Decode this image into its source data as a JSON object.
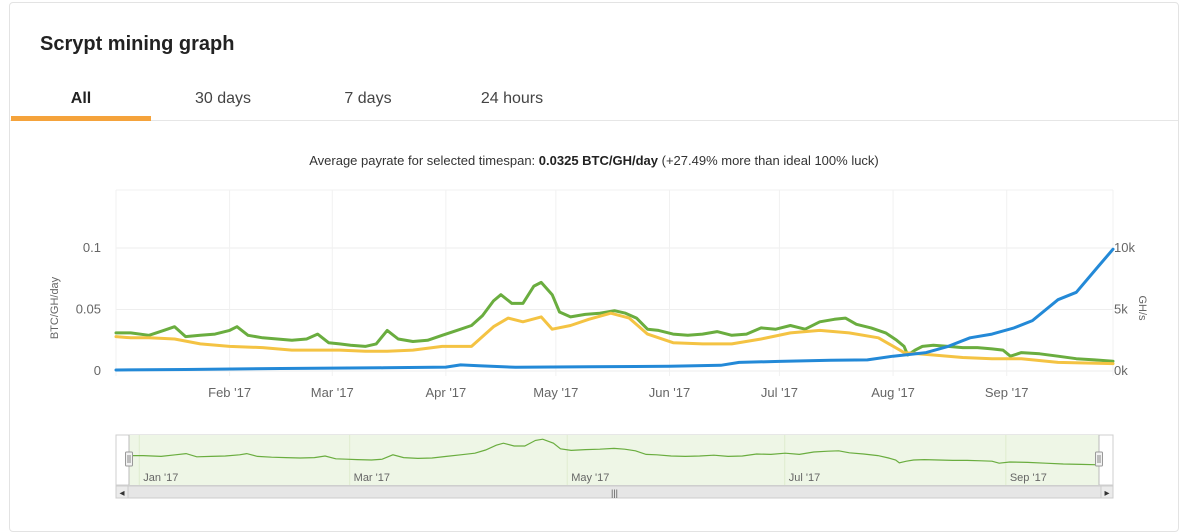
{
  "title": "Scrypt mining graph",
  "tabs": [
    {
      "label": "All",
      "active": true
    },
    {
      "label": "30 days",
      "active": false
    },
    {
      "label": "7 days",
      "active": false
    },
    {
      "label": "24 hours",
      "active": false
    }
  ],
  "subtitle": {
    "prefix": "Average payrate for selected timespan: ",
    "value": "0.0325 BTC/GH/day",
    "suffix": " (+27.49% more than ideal 100% luck)"
  },
  "colors": {
    "accent": "#f5a33b",
    "green": "#6aad3f",
    "yellow": "#f4c343",
    "blue": "#2389d7",
    "navigator_fill": "#eef6e6"
  },
  "chart_data": {
    "type": "line",
    "x_range": [
      "2017-01-01",
      "2017-09-30"
    ],
    "y_left": {
      "label": "BTC/GH/day",
      "ticks": [
        "0",
        "0.05",
        "0.1"
      ],
      "range": [
        0,
        0.1
      ]
    },
    "y_right": {
      "label": "GH/s",
      "ticks": [
        "0k",
        "5k",
        "10k"
      ],
      "range": [
        0,
        10000
      ]
    },
    "x_ticks": [
      {
        "label": "Feb '17",
        "date": "2017-02-01"
      },
      {
        "label": "Mar '17",
        "date": "2017-03-01"
      },
      {
        "label": "Apr '17",
        "date": "2017-04-01"
      },
      {
        "label": "May '17",
        "date": "2017-05-01"
      },
      {
        "label": "Jun '17",
        "date": "2017-06-01"
      },
      {
        "label": "Jul '17",
        "date": "2017-07-01"
      },
      {
        "label": "Aug '17",
        "date": "2017-08-01"
      },
      {
        "label": "Sep '17",
        "date": "2017-09-01"
      }
    ],
    "navigator_ticks": [
      {
        "label": "Jan '17",
        "date": "2017-01-05"
      },
      {
        "label": "Mar '17",
        "date": "2017-03-05"
      },
      {
        "label": "May '17",
        "date": "2017-05-05"
      },
      {
        "label": "Jul '17",
        "date": "2017-07-05"
      },
      {
        "label": "Sep '17",
        "date": "2017-09-05"
      }
    ],
    "series": [
      {
        "axis": "left",
        "color": "#6aad3f",
        "points": [
          [
            "2017-01-01",
            0.031
          ],
          [
            "2017-01-05",
            0.031
          ],
          [
            "2017-01-10",
            0.029
          ],
          [
            "2017-01-14",
            0.033
          ],
          [
            "2017-01-17",
            0.036
          ],
          [
            "2017-01-20",
            0.028
          ],
          [
            "2017-01-24",
            0.029
          ],
          [
            "2017-01-28",
            0.03
          ],
          [
            "2017-02-01",
            0.033
          ],
          [
            "2017-02-03",
            0.036
          ],
          [
            "2017-02-06",
            0.029
          ],
          [
            "2017-02-10",
            0.027
          ],
          [
            "2017-02-14",
            0.026
          ],
          [
            "2017-02-18",
            0.025
          ],
          [
            "2017-02-22",
            0.026
          ],
          [
            "2017-02-25",
            0.03
          ],
          [
            "2017-02-28",
            0.023
          ],
          [
            "2017-03-03",
            0.022
          ],
          [
            "2017-03-06",
            0.021
          ],
          [
            "2017-03-10",
            0.02
          ],
          [
            "2017-03-13",
            0.022
          ],
          [
            "2017-03-16",
            0.033
          ],
          [
            "2017-03-19",
            0.026
          ],
          [
            "2017-03-23",
            0.024
          ],
          [
            "2017-03-27",
            0.025
          ],
          [
            "2017-03-31",
            0.029
          ],
          [
            "2017-04-04",
            0.033
          ],
          [
            "2017-04-08",
            0.037
          ],
          [
            "2017-04-11",
            0.045
          ],
          [
            "2017-04-14",
            0.057
          ],
          [
            "2017-04-16",
            0.062
          ],
          [
            "2017-04-19",
            0.055
          ],
          [
            "2017-04-22",
            0.055
          ],
          [
            "2017-04-25",
            0.069
          ],
          [
            "2017-04-27",
            0.072
          ],
          [
            "2017-04-30",
            0.062
          ],
          [
            "2017-05-02",
            0.048
          ],
          [
            "2017-05-05",
            0.044
          ],
          [
            "2017-05-09",
            0.046
          ],
          [
            "2017-05-13",
            0.047
          ],
          [
            "2017-05-17",
            0.049
          ],
          [
            "2017-05-20",
            0.047
          ],
          [
            "2017-05-23",
            0.043
          ],
          [
            "2017-05-26",
            0.034
          ],
          [
            "2017-05-29",
            0.033
          ],
          [
            "2017-06-02",
            0.03
          ],
          [
            "2017-06-06",
            0.029
          ],
          [
            "2017-06-10",
            0.03
          ],
          [
            "2017-06-14",
            0.032
          ],
          [
            "2017-06-18",
            0.029
          ],
          [
            "2017-06-22",
            0.03
          ],
          [
            "2017-06-26",
            0.035
          ],
          [
            "2017-06-30",
            0.034
          ],
          [
            "2017-07-04",
            0.037
          ],
          [
            "2017-07-08",
            0.034
          ],
          [
            "2017-07-12",
            0.04
          ],
          [
            "2017-07-16",
            0.042
          ],
          [
            "2017-07-19",
            0.043
          ],
          [
            "2017-07-22",
            0.038
          ],
          [
            "2017-07-26",
            0.035
          ],
          [
            "2017-07-30",
            0.031
          ],
          [
            "2017-08-02",
            0.025
          ],
          [
            "2017-08-04",
            0.02
          ],
          [
            "2017-08-05",
            0.013
          ],
          [
            "2017-08-07",
            0.017
          ],
          [
            "2017-08-09",
            0.02
          ],
          [
            "2017-08-12",
            0.021
          ],
          [
            "2017-08-16",
            0.02
          ],
          [
            "2017-08-20",
            0.019
          ],
          [
            "2017-08-24",
            0.019
          ],
          [
            "2017-08-28",
            0.018
          ],
          [
            "2017-08-31",
            0.017
          ],
          [
            "2017-09-02",
            0.012
          ],
          [
            "2017-09-05",
            0.015
          ],
          [
            "2017-09-10",
            0.014
          ],
          [
            "2017-09-15",
            0.012
          ],
          [
            "2017-09-20",
            0.01
          ],
          [
            "2017-09-25",
            0.009
          ],
          [
            "2017-09-30",
            0.008
          ]
        ]
      },
      {
        "axis": "left",
        "color": "#f4c343",
        "points": [
          [
            "2017-01-01",
            0.028
          ],
          [
            "2017-01-05",
            0.027
          ],
          [
            "2017-01-10",
            0.027
          ],
          [
            "2017-01-17",
            0.026
          ],
          [
            "2017-01-24",
            0.022
          ],
          [
            "2017-02-01",
            0.02
          ],
          [
            "2017-02-10",
            0.019
          ],
          [
            "2017-02-18",
            0.017
          ],
          [
            "2017-02-25",
            0.017
          ],
          [
            "2017-03-03",
            0.017
          ],
          [
            "2017-03-10",
            0.016
          ],
          [
            "2017-03-16",
            0.016
          ],
          [
            "2017-03-23",
            0.017
          ],
          [
            "2017-03-31",
            0.02
          ],
          [
            "2017-04-08",
            0.02
          ],
          [
            "2017-04-14",
            0.036
          ],
          [
            "2017-04-18",
            0.043
          ],
          [
            "2017-04-22",
            0.04
          ],
          [
            "2017-04-27",
            0.044
          ],
          [
            "2017-04-30",
            0.034
          ],
          [
            "2017-05-05",
            0.037
          ],
          [
            "2017-05-10",
            0.042
          ],
          [
            "2017-05-16",
            0.047
          ],
          [
            "2017-05-21",
            0.043
          ],
          [
            "2017-05-26",
            0.03
          ],
          [
            "2017-06-02",
            0.023
          ],
          [
            "2017-06-10",
            0.022
          ],
          [
            "2017-06-18",
            0.022
          ],
          [
            "2017-06-26",
            0.026
          ],
          [
            "2017-07-04",
            0.031
          ],
          [
            "2017-07-12",
            0.033
          ],
          [
            "2017-07-20",
            0.031
          ],
          [
            "2017-07-28",
            0.027
          ],
          [
            "2017-08-04",
            0.015
          ],
          [
            "2017-08-12",
            0.013
          ],
          [
            "2017-08-20",
            0.011
          ],
          [
            "2017-08-28",
            0.01
          ],
          [
            "2017-09-05",
            0.01
          ],
          [
            "2017-09-15",
            0.007
          ],
          [
            "2017-09-30",
            0.006
          ]
        ]
      },
      {
        "axis": "right",
        "color": "#2389d7",
        "points": [
          [
            "2017-01-01",
            80
          ],
          [
            "2017-01-20",
            120
          ],
          [
            "2017-02-15",
            200
          ],
          [
            "2017-03-15",
            260
          ],
          [
            "2017-04-01",
            320
          ],
          [
            "2017-04-05",
            500
          ],
          [
            "2017-04-10",
            420
          ],
          [
            "2017-04-20",
            300
          ],
          [
            "2017-05-10",
            340
          ],
          [
            "2017-06-01",
            380
          ],
          [
            "2017-06-15",
            460
          ],
          [
            "2017-06-20",
            700
          ],
          [
            "2017-07-01",
            780
          ],
          [
            "2017-07-15",
            880
          ],
          [
            "2017-07-25",
            900
          ],
          [
            "2017-08-01",
            1200
          ],
          [
            "2017-08-10",
            1500
          ],
          [
            "2017-08-16",
            2000
          ],
          [
            "2017-08-22",
            2700
          ],
          [
            "2017-08-28",
            3000
          ],
          [
            "2017-09-03",
            3500
          ],
          [
            "2017-09-08",
            4100
          ],
          [
            "2017-09-15",
            5800
          ],
          [
            "2017-09-20",
            6400
          ],
          [
            "2017-09-26",
            8500
          ],
          [
            "2017-09-30",
            9900
          ]
        ]
      }
    ]
  },
  "navigator": {
    "left_arrow": "◂",
    "right_arrow": "▸",
    "handle": "|||"
  }
}
